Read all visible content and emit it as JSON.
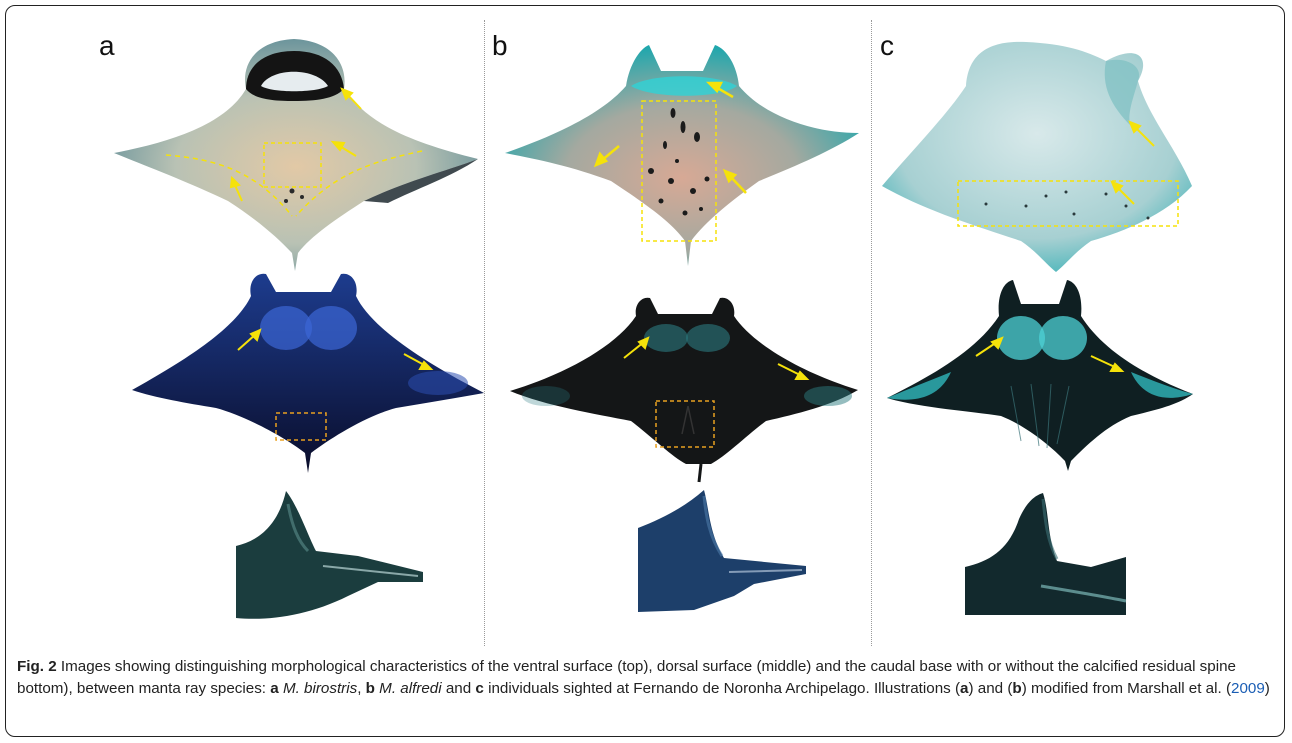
{
  "figure": {
    "panels": [
      {
        "label": "a",
        "species": "M. birostris"
      },
      {
        "label": "b",
        "species": "M. alfredi"
      },
      {
        "label": "c",
        "species": "Fernando de Noronha"
      }
    ],
    "colors": {
      "arrow": "#f5e20a",
      "ventral_box": "#f5e20a",
      "dorsal_box": "#e8a020",
      "divider": "#9a9a9a",
      "link": "#1a5db4"
    }
  },
  "caption": {
    "fig_label": "Fig. 2",
    "text_1": " Images showing distinguishing morphological characteristics of the ventral surface (top), dorsal surface (middle) and the caudal base with or without the calcified residual spine bottom), between manta ray species: ",
    "a_letter": "a",
    "a_species": "M. birostris",
    "sep_1": ", ",
    "b_letter": "b",
    "b_species": "M. alfredi",
    "sep_2": " and ",
    "c_letter": "c",
    "text_2": " individuals sighted at Fernando de Noronha Archipelago. Illustrations (",
    "ref_a": "a",
    "text_3": ") and (",
    "ref_b": "b",
    "text_4": ") modified from Marshall et al. (",
    "year": "2009",
    "text_5": ")"
  }
}
